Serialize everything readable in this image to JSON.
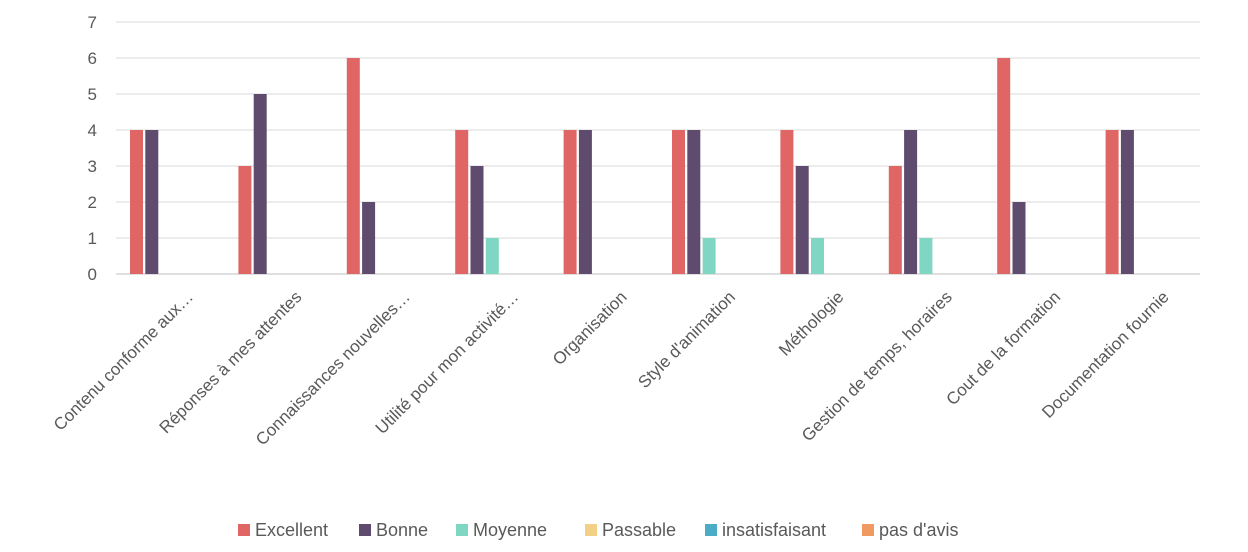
{
  "chart_data": {
    "type": "bar",
    "categories": [
      "Contenu conforme aux…",
      "Réponses à mes attentes",
      "Connaissances nouvelles…",
      "Utilité pour mon activité…",
      "Organisation",
      "Style d'animation",
      "Méthologie",
      "Gestion de temps, horaires",
      "Cout de la formation",
      "Documentation fournie"
    ],
    "series": [
      {
        "name": "Excellent",
        "color": "#E06666",
        "values": [
          4,
          3,
          6,
          4,
          4,
          4,
          4,
          3,
          6,
          4
        ]
      },
      {
        "name": "Bonne",
        "color": "#5E4B6E",
        "values": [
          4,
          5,
          2,
          3,
          4,
          4,
          3,
          4,
          2,
          4
        ]
      },
      {
        "name": "Moyenne",
        "color": "#7FD6C2",
        "values": [
          0,
          0,
          0,
          1,
          0,
          1,
          1,
          1,
          0,
          0
        ]
      },
      {
        "name": "Passable",
        "color": "#F4CF86",
        "values": [
          0,
          0,
          0,
          0,
          0,
          0,
          0,
          0,
          0,
          0
        ]
      },
      {
        "name": "insatisfaisant",
        "color": "#4BACC6",
        "values": [
          0,
          0,
          0,
          0,
          0,
          0,
          0,
          0,
          0,
          0
        ]
      },
      {
        "name": "pas d'avis",
        "color": "#F09A62",
        "values": [
          0,
          0,
          0,
          0,
          0,
          0,
          0,
          0,
          0,
          0
        ]
      }
    ],
    "ylim": [
      0,
      7
    ],
    "yticks": [
      0,
      1,
      2,
      3,
      4,
      5,
      6,
      7
    ],
    "grid": true,
    "legend": "bottom"
  }
}
